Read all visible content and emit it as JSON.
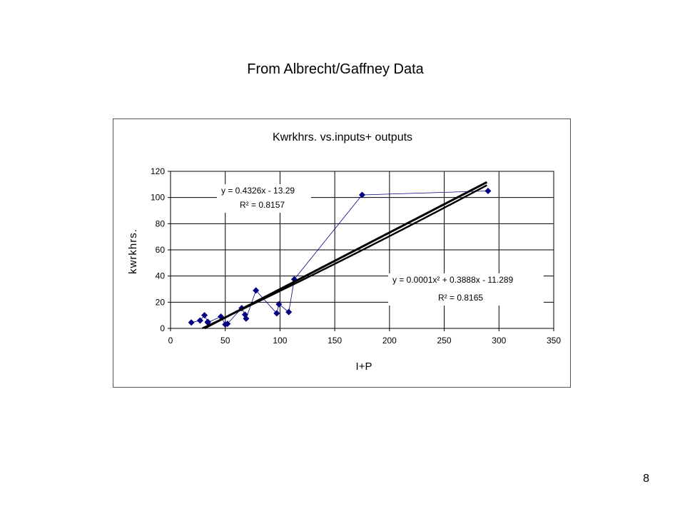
{
  "slide": {
    "title": "From Albrecht/Gaffney Data",
    "page_number": "8"
  },
  "chart_data": {
    "type": "scatter",
    "title": "Kwrkhrs. vs.inputs+ outputs",
    "xlabel": "I+P",
    "ylabel": "kwrkhrs.",
    "xlim": [
      0,
      350
    ],
    "ylim": [
      0,
      120
    ],
    "x_ticks": [
      0,
      50,
      100,
      150,
      200,
      250,
      300,
      350
    ],
    "y_ticks": [
      0,
      20,
      40,
      60,
      80,
      100,
      120
    ],
    "grid": true,
    "legend": "none",
    "colors": {
      "series": "#000080",
      "trend": "#000000",
      "grid": "#000000"
    },
    "series": [
      {
        "points": [
          [
            19,
            4.5
          ],
          [
            27,
            6
          ],
          [
            31,
            10
          ],
          [
            34,
            5
          ],
          [
            34,
            4.5
          ],
          [
            46,
            9
          ],
          [
            50,
            3
          ],
          [
            52,
            3.5
          ],
          [
            65,
            15.5
          ],
          [
            68,
            10.5
          ],
          [
            69,
            7.5
          ],
          [
            78,
            29
          ],
          [
            97,
            11.5
          ],
          [
            99,
            18.5
          ],
          [
            108,
            12.5
          ],
          [
            113,
            37.5
          ],
          [
            175,
            102
          ],
          [
            290,
            105
          ]
        ]
      }
    ],
    "trendlines": [
      {
        "kind": "linear",
        "equation": "y = 0.4326x - 13.29",
        "r2": "R² = 0.8157",
        "coef": [
          -13.29,
          0.4326
        ]
      },
      {
        "kind": "polynomial",
        "equation": "y = 0.0001x² + 0.3888x - 11.289",
        "r2": "R² = 0.8165",
        "coef": [
          -11.289,
          0.3888,
          0.0001
        ]
      }
    ]
  }
}
